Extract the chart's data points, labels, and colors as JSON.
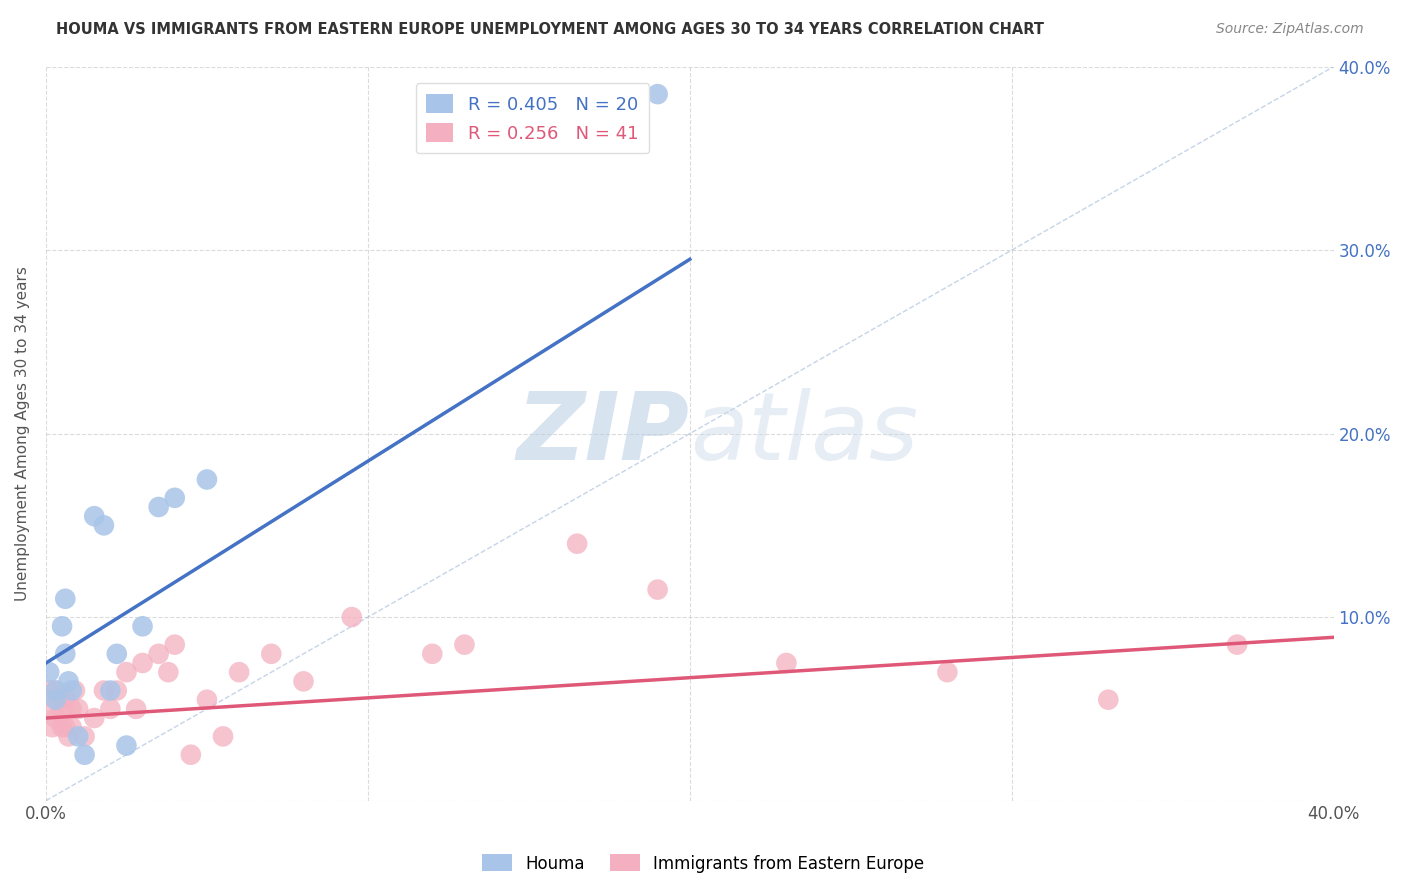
{
  "title": "HOUMA VS IMMIGRANTS FROM EASTERN EUROPE UNEMPLOYMENT AMONG AGES 30 TO 34 YEARS CORRELATION CHART",
  "source": "Source: ZipAtlas.com",
  "ylabel": "Unemployment Among Ages 30 to 34 years",
  "xlim": [
    0.0,
    0.4
  ],
  "ylim": [
    0.0,
    0.4
  ],
  "xticks": [
    0.0,
    0.1,
    0.2,
    0.3,
    0.4
  ],
  "yticks": [
    0.0,
    0.1,
    0.2,
    0.3,
    0.4
  ],
  "xticklabels": [
    "0.0%",
    "",
    "",
    "",
    "40.0%"
  ],
  "yticklabels_right": [
    "",
    "10.0%",
    "20.0%",
    "30.0%",
    "40.0%"
  ],
  "houma_R": 0.405,
  "houma_N": 20,
  "immigrants_R": 0.256,
  "immigrants_N": 41,
  "houma_color": "#a8c4e8",
  "houma_line_color": "#4472c4",
  "immigrants_color": "#f4b0c0",
  "immigrants_line_color": "#e05878",
  "watermark_color": "#d0e0f0",
  "houma_x": [
    0.001,
    0.003,
    0.003,
    0.005,
    0.006,
    0.006,
    0.007,
    0.008,
    0.01,
    0.012,
    0.015,
    0.018,
    0.02,
    0.022,
    0.025,
    0.03,
    0.035,
    0.04,
    0.05,
    0.19
  ],
  "houma_y": [
    0.07,
    0.06,
    0.055,
    0.095,
    0.11,
    0.08,
    0.065,
    0.06,
    0.035,
    0.025,
    0.155,
    0.15,
    0.06,
    0.08,
    0.03,
    0.095,
    0.16,
    0.165,
    0.175,
    0.385
  ],
  "immigrants_x": [
    0.001,
    0.002,
    0.002,
    0.003,
    0.003,
    0.004,
    0.005,
    0.005,
    0.006,
    0.006,
    0.007,
    0.008,
    0.008,
    0.009,
    0.01,
    0.012,
    0.015,
    0.018,
    0.02,
    0.022,
    0.025,
    0.028,
    0.03,
    0.035,
    0.038,
    0.04,
    0.045,
    0.05,
    0.055,
    0.06,
    0.07,
    0.08,
    0.095,
    0.12,
    0.13,
    0.165,
    0.19,
    0.23,
    0.28,
    0.33,
    0.37
  ],
  "immigrants_y": [
    0.06,
    0.05,
    0.04,
    0.06,
    0.045,
    0.055,
    0.05,
    0.04,
    0.04,
    0.055,
    0.035,
    0.05,
    0.04,
    0.06,
    0.05,
    0.035,
    0.045,
    0.06,
    0.05,
    0.06,
    0.07,
    0.05,
    0.075,
    0.08,
    0.07,
    0.085,
    0.025,
    0.055,
    0.035,
    0.07,
    0.08,
    0.065,
    0.1,
    0.08,
    0.085,
    0.14,
    0.115,
    0.075,
    0.07,
    0.055,
    0.085
  ],
  "blue_line_x": [
    0.0,
    0.2
  ],
  "blue_line_y_intercept": 0.075,
  "blue_line_slope": 1.1,
  "pink_line_x": [
    0.0,
    0.4
  ],
  "pink_line_y_intercept": 0.045,
  "pink_line_slope": 0.11
}
